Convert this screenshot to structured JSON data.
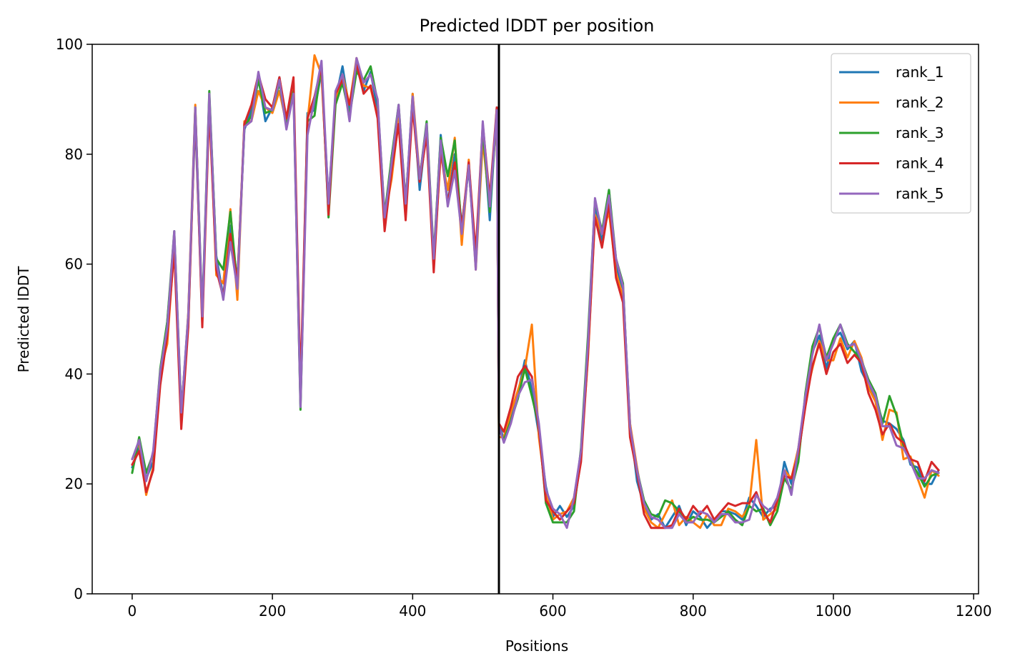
{
  "chart_data": {
    "type": "line",
    "title": "Predicted lDDT per position",
    "xlabel": "Positions",
    "ylabel": "Predicted lDDT",
    "xlim": [
      -57,
      1207
    ],
    "ylim": [
      0,
      100
    ],
    "xticks": [
      0,
      200,
      400,
      600,
      800,
      1000,
      1200
    ],
    "yticks": [
      0,
      20,
      40,
      60,
      80,
      100
    ],
    "grid": false,
    "legend_position": "top-right",
    "vertical_line_x": 523,
    "series": [
      {
        "name": "rank_1",
        "color": "#1f77b4",
        "offset": [
          0.0,
          -0.5,
          1.0,
          0.0,
          -1.0,
          1.5,
          -0.5,
          0.5,
          1.0,
          -1.5,
          0.0,
          0.5,
          1.5,
          -1.0,
          0.0,
          2.0,
          -0.5,
          1.0,
          0.0,
          -2.0,
          0.5,
          1.0,
          0.0,
          0.5,
          -0.5,
          2.5,
          0.0,
          -1.0,
          1.5,
          0.0,
          2.0,
          0.0
        ]
      },
      {
        "name": "rank_2",
        "color": "#ff7f0e",
        "offset": [
          1.5,
          0.5,
          -2.0,
          -1.0,
          0.5,
          -2.5,
          -1.5,
          -1.0,
          1.0,
          1.0,
          -0.5,
          0.0,
          -2.0,
          1.5,
          3.0,
          -1.5,
          1.0,
          -1.0,
          -2.5,
          0.5,
          -0.5,
          -1.5,
          0.5,
          1.0,
          0.0,
          1.0,
          12.0,
          -1.5,
          0.5,
          -0.5,
          0.5,
          1.0
        ]
      },
      {
        "name": "rank_3",
        "color": "#2ca02c",
        "offset": [
          -1.0,
          1.5,
          2.0,
          1.5,
          1.0,
          1.5,
          1.0,
          1.5,
          -1.0,
          0.5,
          1.0,
          1.5,
          1.0,
          4.0,
          2.5,
          1.0,
          0.0,
          0.0,
          -0.5,
          -0.5,
          0.0,
          0.0,
          0.0,
          -0.5,
          -1.5,
          1.0,
          -1.0,
          0.5,
          -1.5,
          -1.0,
          -1.0,
          -1.0
        ]
      },
      {
        "name": "rank_4",
        "color": "#d62728",
        "offset": [
          0.5,
          -1.0,
          -1.5,
          -1.5,
          -2.0,
          -1.0,
          -2.5,
          -2.0,
          -1.5,
          0.0,
          -1.5,
          -1.5,
          -1.0,
          -1.0,
          -1.5,
          1.5,
          0.5,
          2.0,
          0.5,
          2.0,
          0.5,
          1.0,
          1.5,
          2.0,
          2.5,
          1.5,
          2.5,
          0.0,
          -1.0,
          1.0,
          -0.5,
          1.0
        ]
      },
      {
        "name": "rank_5",
        "color": "#9467bd",
        "offset": [
          1.5,
          1.0,
          0.5,
          2.0,
          0.5,
          0.5,
          1.0,
          1.0,
          0.5,
          0.5,
          0.5,
          1.0,
          0.5,
          -1.5,
          -3.0,
          0.5,
          0.0,
          -1.0,
          1.0,
          0.5,
          0.0,
          0.5,
          -0.5,
          -1.0,
          -1.0,
          -1.5,
          2.0,
          1.0,
          1.0,
          1.5,
          0.5,
          -2.0
        ]
      }
    ],
    "baseline": {
      "x": [
        0,
        10,
        20,
        30,
        40,
        50,
        60,
        70,
        80,
        90,
        100,
        110,
        120,
        130,
        140,
        150,
        160,
        170,
        180,
        190,
        200,
        210,
        220,
        230,
        240,
        250,
        260,
        270,
        280,
        290,
        300,
        310,
        320,
        330,
        340,
        350,
        360,
        370,
        380,
        390,
        400,
        410,
        420,
        430,
        440,
        450,
        460,
        470,
        480,
        490,
        500,
        510,
        520,
        523,
        530,
        540,
        550,
        560,
        570,
        580,
        590,
        600,
        610,
        620,
        630,
        640,
        650,
        660,
        670,
        680,
        690,
        700,
        710,
        720,
        730,
        740,
        750,
        760,
        770,
        780,
        790,
        800,
        810,
        820,
        830,
        840,
        850,
        860,
        870,
        880,
        890,
        900,
        910,
        920,
        930,
        940,
        950,
        960,
        970,
        980,
        990,
        1000,
        1010,
        1020,
        1030,
        1040,
        1050,
        1060,
        1070,
        1080,
        1090,
        1100,
        1110,
        1120,
        1130,
        1140,
        1150
      ],
      "y": [
        23,
        27,
        20,
        24,
        40,
        48,
        65,
        32,
        50,
        88,
        50,
        90,
        60,
        55,
        67,
        55,
        85,
        87,
        94,
        88,
        88,
        93,
        85,
        92,
        35,
        85,
        88,
        96,
        70,
        90,
        94,
        88,
        96,
        92,
        94,
        88,
        68,
        78,
        88,
        70,
        90,
        75,
        85,
        60,
        82,
        72,
        80,
        65,
        78,
        60,
        85,
        70,
        88,
        30,
        28,
        32,
        37,
        40,
        37,
        30,
        18,
        14,
        14,
        14,
        16,
        25,
        45,
        70,
        65,
        72,
        60,
        55,
        30,
        22,
        16,
        13,
        13,
        13,
        14,
        14,
        13,
        14,
        14,
        14,
        13,
        14,
        15,
        14,
        14,
        15,
        16,
        15,
        14,
        16,
        22,
        20,
        25,
        35,
        43,
        47,
        42,
        45,
        48,
        44,
        45,
        42,
        38,
        35,
        30,
        32,
        30,
        26,
        24,
        22,
        20,
        22,
        22
      ]
    }
  }
}
